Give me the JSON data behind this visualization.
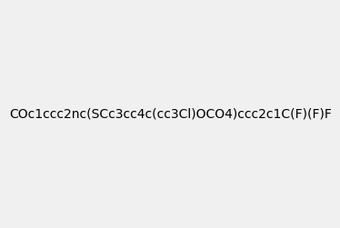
{
  "smiles": "COc1ccc2nc(SCc3cc4c(cc3Cl)OCO4)ccc2c1C(F)(F)F",
  "image_size": 300,
  "background_color": "#f0f0f0",
  "atom_colors": {
    "N": "#0000ff",
    "O": "#ff0000",
    "S": "#cccc00",
    "F": "#ff00ff",
    "Cl": "#00cc00"
  }
}
